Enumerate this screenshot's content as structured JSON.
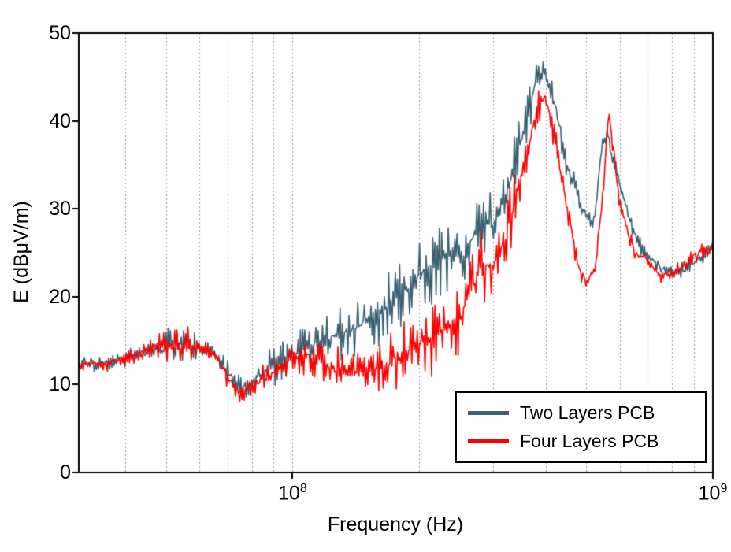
{
  "chart_data": {
    "type": "line",
    "title": "",
    "xlabel": "Frequency (Hz)",
    "ylabel": "E (dBμV/m)",
    "x_scale": "log",
    "xlim": [
      31000000.0,
      1000000000.0
    ],
    "ylim": [
      0,
      50
    ],
    "y_ticks": [
      0,
      10,
      20,
      30,
      40,
      50
    ],
    "x_ticks": [
      {
        "base": "10",
        "exp": "8",
        "f": 100000000.0
      },
      {
        "base": "10",
        "exp": "9",
        "f": 1000000000.0
      }
    ],
    "x_gridlines": [
      40000000.0,
      50000000.0,
      60000000.0,
      70000000.0,
      80000000.0,
      90000000.0,
      100000000.0,
      200000000.0,
      300000000.0,
      400000000.0,
      500000000.0,
      600000000.0,
      700000000.0,
      800000000.0,
      900000000.0
    ],
    "grid": {
      "style": "dashed-vertical",
      "color": "#999999"
    },
    "frame_color": "#000000",
    "legend": {
      "position": "bottom-right"
    },
    "series": [
      {
        "name": "Two Layers PCB",
        "color": "#3A6173",
        "anchors": [
          [
            31000000.0,
            12.5,
            0.8
          ],
          [
            35000000.0,
            12.3,
            0.7
          ],
          [
            40000000.0,
            13.0,
            0.9
          ],
          [
            45000000.0,
            13.8,
            1.2
          ],
          [
            50000000.0,
            14.3,
            2.6
          ],
          [
            55000000.0,
            14.5,
            2.8
          ],
          [
            60000000.0,
            14.0,
            1.4
          ],
          [
            65000000.0,
            13.5,
            1.0
          ],
          [
            70000000.0,
            11.5,
            1.3
          ],
          [
            75000000.0,
            9.5,
            1.4
          ],
          [
            80000000.0,
            10.2,
            1.8
          ],
          [
            90000000.0,
            12.0,
            2.3
          ],
          [
            100000000.0,
            13.5,
            2.4
          ],
          [
            120000000.0,
            15.0,
            3.0
          ],
          [
            140000000.0,
            16.5,
            3.5
          ],
          [
            160000000.0,
            18.0,
            3.8
          ],
          [
            180000000.0,
            20.0,
            4.2
          ],
          [
            200000000.0,
            22.5,
            4.5
          ],
          [
            220000000.0,
            24.0,
            4.5
          ],
          [
            240000000.0,
            24.5,
            4.0
          ],
          [
            260000000.0,
            25.0,
            4.0
          ],
          [
            280000000.0,
            29.0,
            4.0
          ],
          [
            300000000.0,
            28.0,
            3.5
          ],
          [
            320000000.0,
            31.0,
            3.2
          ],
          [
            350000000.0,
            38.0,
            3.2
          ],
          [
            380000000.0,
            44.5,
            2.2
          ],
          [
            400000000.0,
            45.5,
            1.2
          ],
          [
            420000000.0,
            42.0,
            1.8
          ],
          [
            450000000.0,
            35.0,
            1.8
          ],
          [
            480000000.0,
            31.0,
            1.2
          ],
          [
            500000000.0,
            29.5,
            1.0
          ],
          [
            520000000.0,
            28.0,
            0.8
          ],
          [
            545000000.0,
            37.0,
            1.0
          ],
          [
            560000000.0,
            38.5,
            0.8
          ],
          [
            600000000.0,
            33.0,
            0.8
          ],
          [
            650000000.0,
            27.0,
            0.8
          ],
          [
            700000000.0,
            24.5,
            0.7
          ],
          [
            750000000.0,
            23.5,
            0.7
          ],
          [
            800000000.0,
            22.8,
            0.7
          ],
          [
            850000000.0,
            23.0,
            0.7
          ],
          [
            900000000.0,
            23.8,
            0.9
          ],
          [
            1000000000.0,
            25.5,
            0.9
          ]
        ]
      },
      {
        "name": "Four Layers PCB",
        "color": "#FF0000",
        "anchors": [
          [
            31000000.0,
            12.3,
            0.7
          ],
          [
            35000000.0,
            12.2,
            0.6
          ],
          [
            40000000.0,
            13.0,
            0.8
          ],
          [
            45000000.0,
            13.8,
            1.0
          ],
          [
            50000000.0,
            14.3,
            1.8
          ],
          [
            55000000.0,
            14.4,
            2.4
          ],
          [
            60000000.0,
            14.0,
            1.2
          ],
          [
            65000000.0,
            13.5,
            0.9
          ],
          [
            70000000.0,
            11.0,
            1.1
          ],
          [
            75000000.0,
            8.8,
            1.0
          ],
          [
            80000000.0,
            9.8,
            1.4
          ],
          [
            90000000.0,
            11.5,
            1.6
          ],
          [
            100000000.0,
            13.0,
            1.6
          ],
          [
            110000000.0,
            13.2,
            2.0
          ],
          [
            120000000.0,
            12.2,
            2.4
          ],
          [
            135000000.0,
            11.2,
            2.6
          ],
          [
            150000000.0,
            11.2,
            2.4
          ],
          [
            170000000.0,
            12.5,
            3.2
          ],
          [
            200000000.0,
            14.5,
            4.2
          ],
          [
            220000000.0,
            15.5,
            4.5
          ],
          [
            250000000.0,
            17.5,
            4.8
          ],
          [
            280000000.0,
            23.5,
            5.0
          ],
          [
            300000000.0,
            23.5,
            4.5
          ],
          [
            320000000.0,
            26.5,
            4.2
          ],
          [
            350000000.0,
            33.5,
            4.0
          ],
          [
            380000000.0,
            41.0,
            2.8
          ],
          [
            400000000.0,
            43.0,
            1.4
          ],
          [
            420000000.0,
            38.0,
            2.0
          ],
          [
            450000000.0,
            30.0,
            2.0
          ],
          [
            480000000.0,
            23.5,
            1.4
          ],
          [
            500000000.0,
            21.5,
            1.0
          ],
          [
            525000000.0,
            23.0,
            1.0
          ],
          [
            550000000.0,
            33.0,
            1.0
          ],
          [
            565000000.0,
            41.0,
            0.8
          ],
          [
            580000000.0,
            37.0,
            0.9
          ],
          [
            600000000.0,
            30.5,
            0.9
          ],
          [
            650000000.0,
            25.0,
            0.8
          ],
          [
            700000000.0,
            24.0,
            0.7
          ],
          [
            750000000.0,
            22.5,
            0.7
          ],
          [
            800000000.0,
            22.5,
            0.7
          ],
          [
            850000000.0,
            23.5,
            0.8
          ],
          [
            900000000.0,
            24.5,
            0.9
          ],
          [
            1000000000.0,
            25.5,
            0.9
          ]
        ]
      }
    ]
  }
}
